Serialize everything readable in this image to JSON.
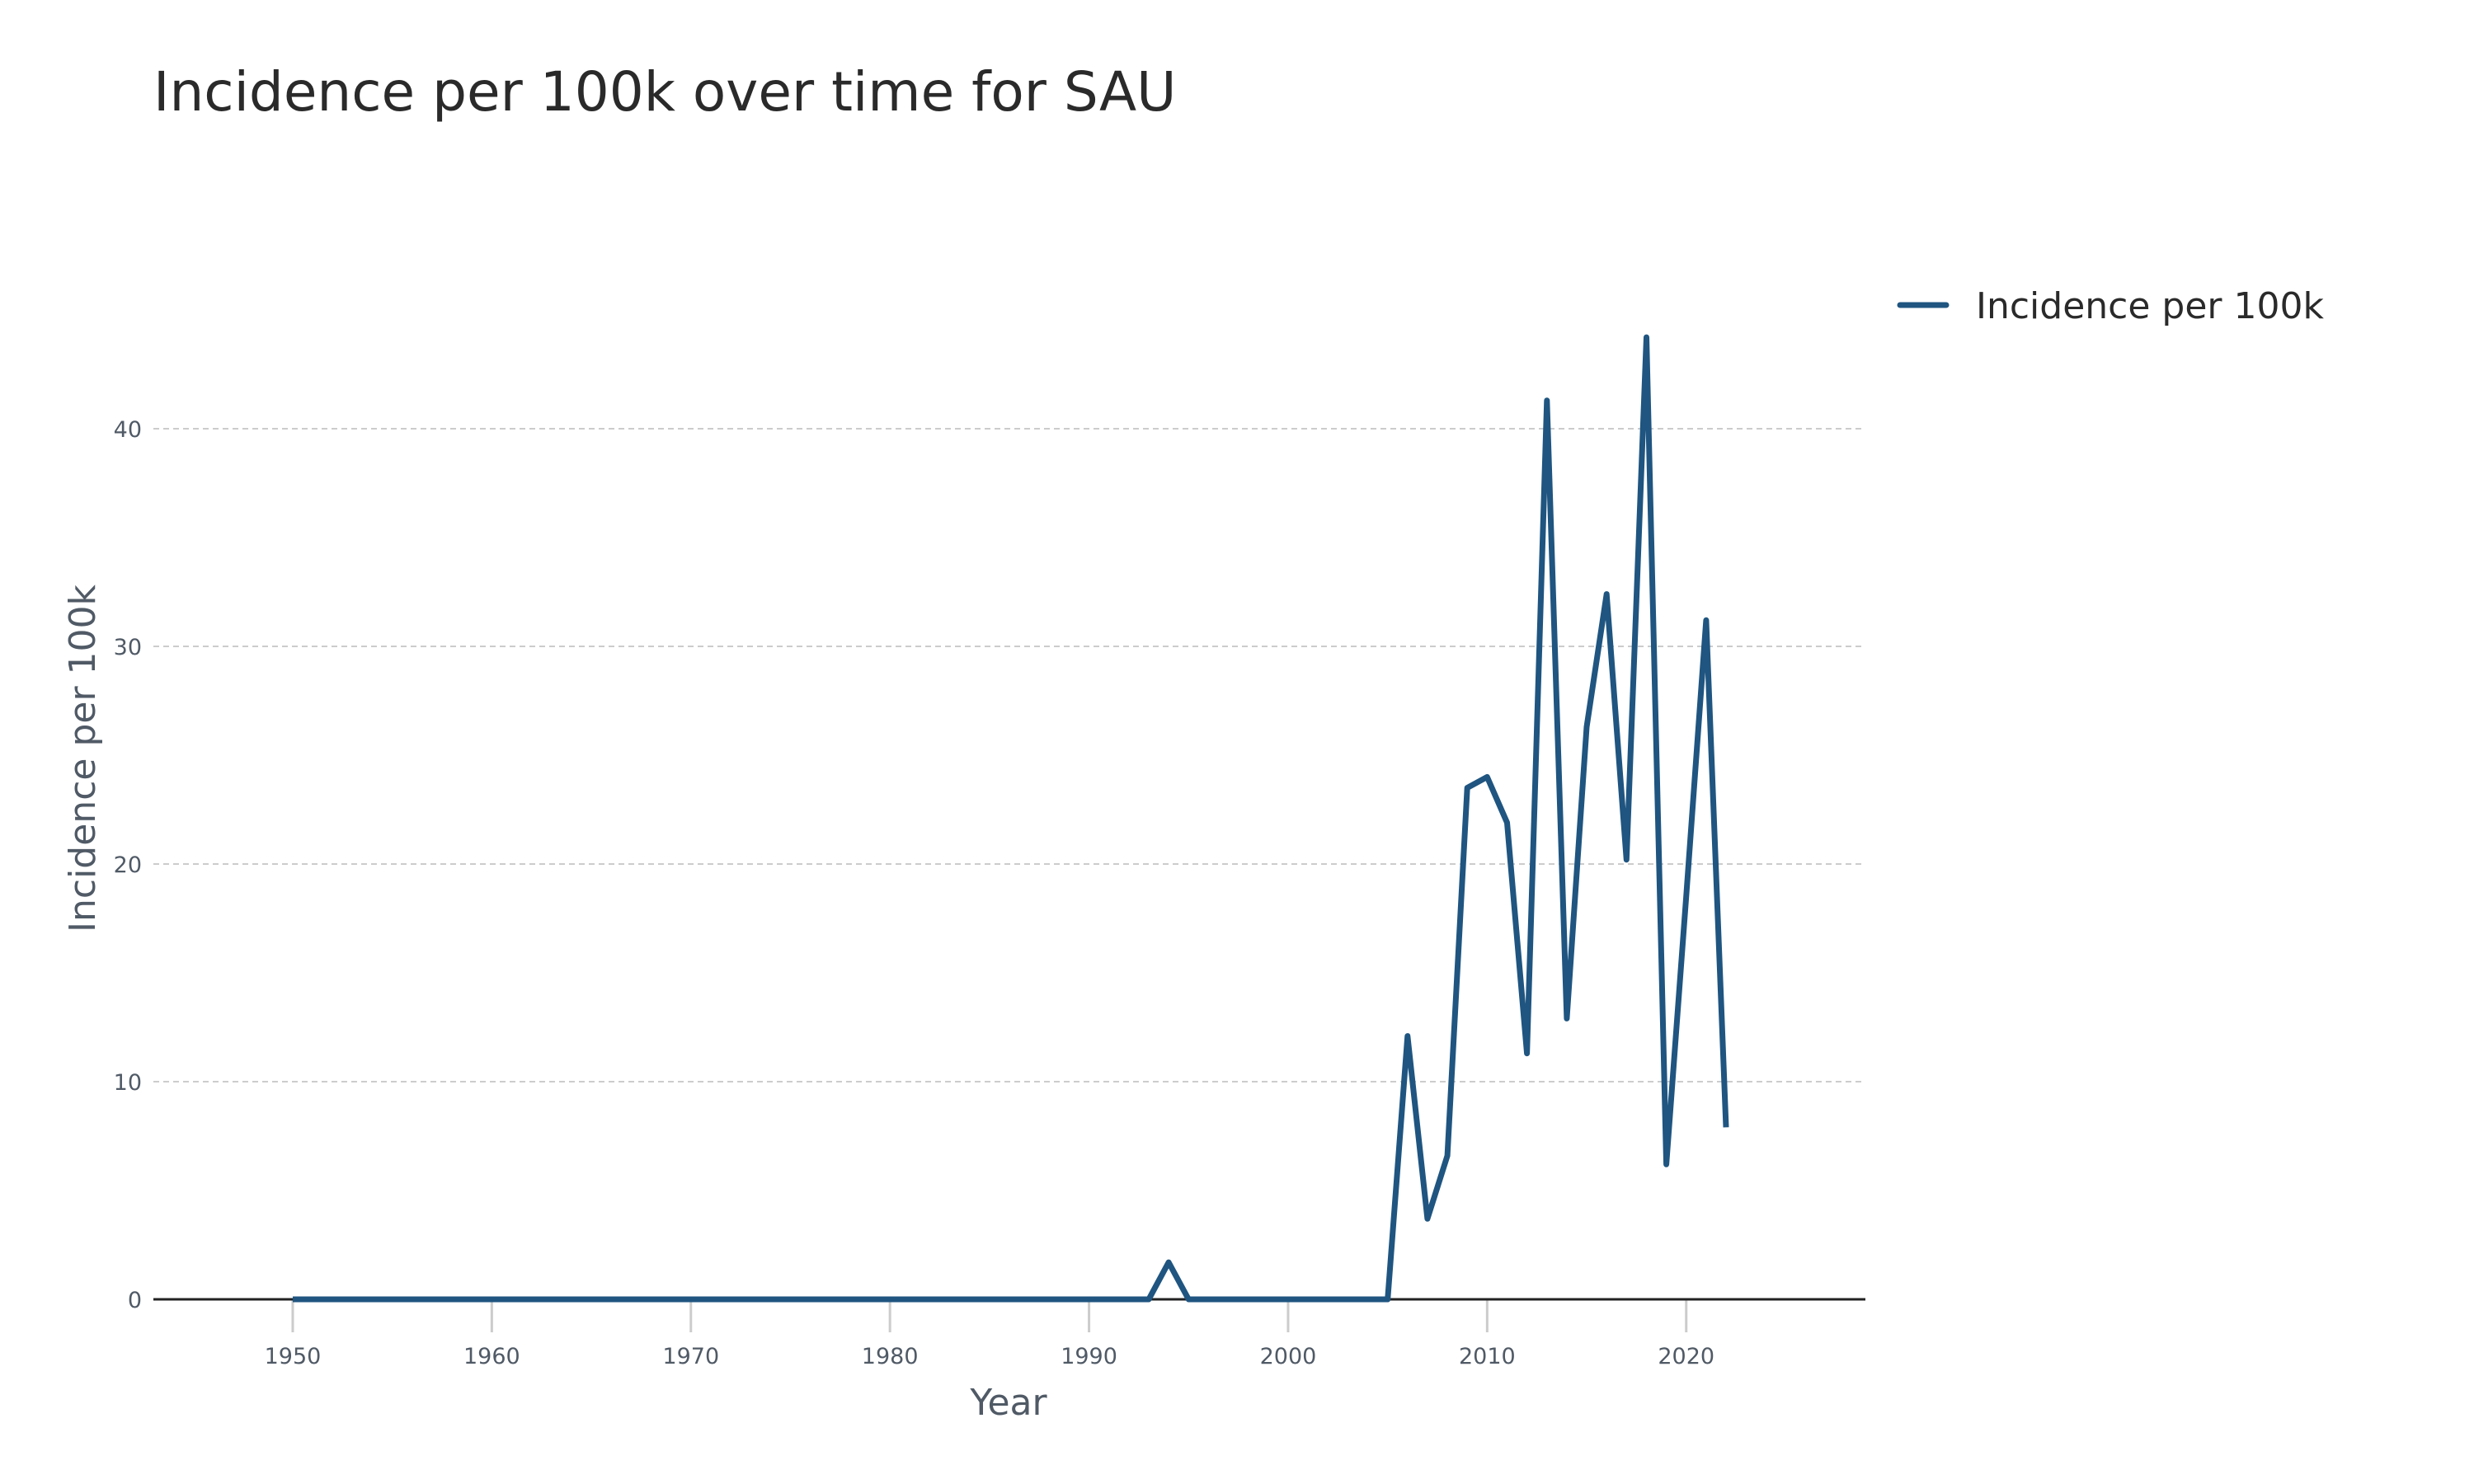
{
  "chart_data": {
    "type": "line",
    "title": "Incidence per 100k over time for SAU",
    "xlabel": "Year",
    "ylabel": "Incidence per 100k",
    "xlim": [
      1943,
      2029
    ],
    "ylim": [
      0,
      45
    ],
    "x_ticks": [
      1950,
      1960,
      1970,
      1980,
      1990,
      2000,
      2010,
      2020
    ],
    "y_ticks": [
      0,
      10,
      20,
      30,
      40
    ],
    "grid": "horizontal dashed",
    "legend_position": "top-right",
    "series": [
      {
        "name": "Incidence per 100k",
        "color": "#1f5580",
        "x": [
          1950,
          1951,
          1952,
          1953,
          1954,
          1955,
          1956,
          1957,
          1958,
          1959,
          1960,
          1961,
          1962,
          1963,
          1964,
          1965,
          1966,
          1967,
          1968,
          1969,
          1970,
          1971,
          1972,
          1973,
          1974,
          1975,
          1976,
          1977,
          1978,
          1979,
          1980,
          1981,
          1982,
          1983,
          1984,
          1985,
          1986,
          1987,
          1988,
          1989,
          1990,
          1991,
          1992,
          1993,
          1994,
          1995,
          1996,
          1997,
          1998,
          1999,
          2000,
          2001,
          2002,
          2003,
          2004,
          2005,
          2006,
          2007,
          2008,
          2009,
          2010,
          2011,
          2012,
          2013,
          2014,
          2015,
          2016,
          2017,
          2018,
          2019,
          2020,
          2021,
          2022
        ],
        "y": [
          0,
          0,
          0,
          0,
          0,
          0,
          0,
          0,
          0,
          0,
          0,
          0,
          0,
          0,
          0,
          0,
          0,
          0,
          0,
          0,
          0,
          0,
          0,
          0,
          0,
          0,
          0,
          0,
          0,
          0,
          0,
          0,
          0,
          0,
          0,
          0,
          0,
          0,
          0,
          0,
          0,
          0,
          0,
          0,
          1.7,
          0,
          0,
          0,
          0,
          0,
          0,
          0,
          0,
          0,
          0,
          0,
          12.1,
          3.7,
          6.6,
          23.5,
          24.0,
          21.9,
          11.3,
          41.3,
          12.9,
          26.3,
          32.4,
          20.2,
          44.2,
          6.2,
          18.5,
          31.2,
          7.9
        ]
      }
    ]
  }
}
